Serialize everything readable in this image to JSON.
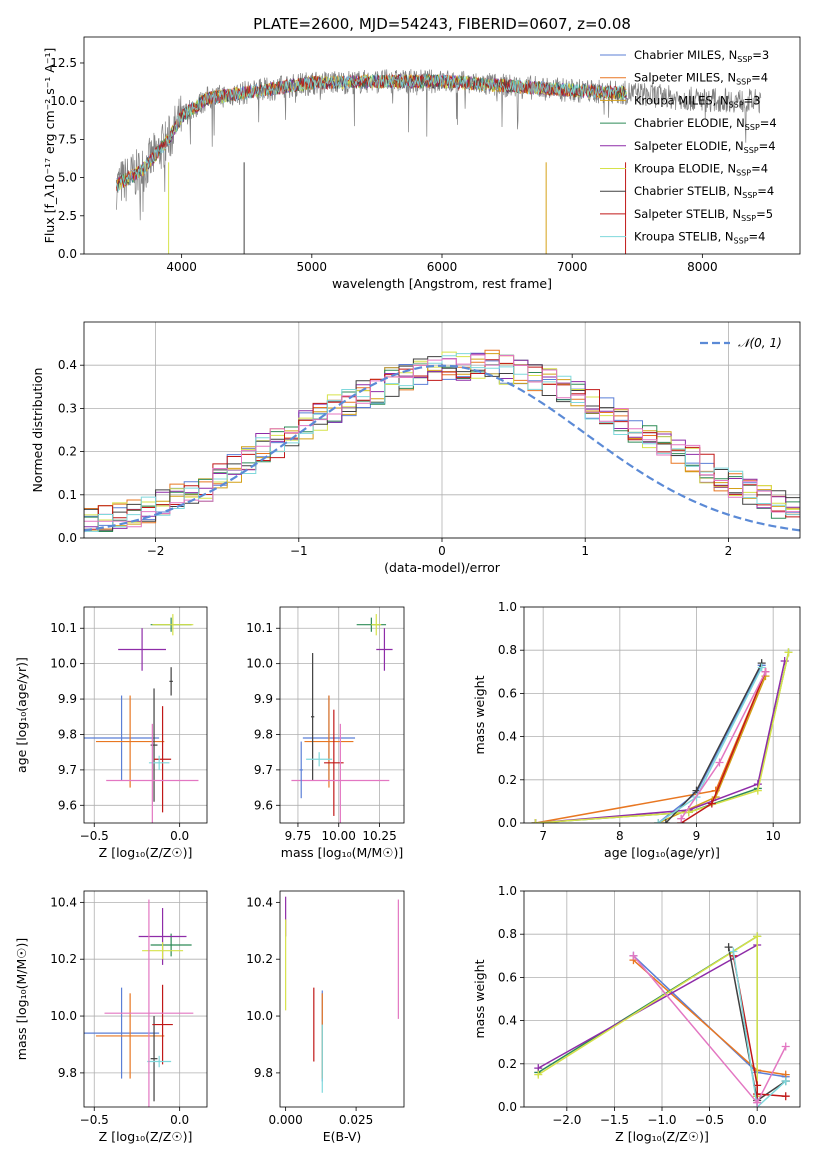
{
  "figure": {
    "title": "PLATE=2600, MJD=54243, FIBERID=0607, z=0.08"
  },
  "colors": {
    "Chabrier MILES": "#5b7fd6",
    "Salpeter MILES": "#e87722",
    "Kroupa MILES": "#d4a017",
    "Chabrier ELODIE": "#2e8b57",
    "Salpeter ELODIE": "#8e2ca8",
    "Kroupa ELODIE": "#d6e24a",
    "Chabrier STELIB": "#404040",
    "Salpeter STELIB": "#c01818",
    "Kroupa STELIB": "#7fd8dc",
    "Chabrier MILES alt": "#e377c2",
    "Normal": "#5b8ad6",
    "data": "#808080"
  },
  "chart_data": [
    {
      "id": "spectrum",
      "type": "line",
      "xlabel": "wavelength [Angstrom, rest frame]",
      "ylabel": "Flux [f_λ10⁻¹⁷ erg cm⁻² s⁻¹ A⁻¹]",
      "xlim": [
        3250,
        8750
      ],
      "ylim": [
        0,
        14.2
      ],
      "xticks": [
        4000,
        5000,
        6000,
        7000,
        8000
      ],
      "yticks": [
        0.0,
        2.5,
        5.0,
        7.5,
        10.0,
        12.5
      ],
      "grid": false,
      "legend_position": "right",
      "data_range": [
        3500,
        8450
      ],
      "model_range": [
        3500,
        7420
      ],
      "continuum": [
        [
          3500,
          4.5
        ],
        [
          3700,
          5.5
        ],
        [
          3900,
          7.5
        ],
        [
          4000,
          9.0
        ],
        [
          4200,
          10.2
        ],
        [
          4600,
          10.7
        ],
        [
          5000,
          11.2
        ],
        [
          5500,
          11.3
        ],
        [
          6000,
          11.3
        ],
        [
          6500,
          11.0
        ],
        [
          7000,
          10.7
        ],
        [
          7500,
          10.5
        ],
        [
          7800,
          10.2
        ],
        [
          8000,
          10.1
        ],
        [
          8450,
          10.0
        ]
      ],
      "legend": [
        {
          "label": "Chabrier MILES, N",
          "sub": "SSP",
          "n": "=3"
        },
        {
          "label": "Salpeter MILES, N",
          "sub": "SSP",
          "n": "=4"
        },
        {
          "label": "Kroupa MILES, N",
          "sub": "SSP",
          "n": "=3"
        },
        {
          "label": "Chabrier ELODIE, N",
          "sub": "SSP",
          "n": "=4"
        },
        {
          "label": "Salpeter ELODIE, N",
          "sub": "SSP",
          "n": "=4"
        },
        {
          "label": "Kroupa ELODIE, N",
          "sub": "SSP",
          "n": "=4"
        },
        {
          "label": "Chabrier STELIB, N",
          "sub": "SSP",
          "n": "=4"
        },
        {
          "label": "Salpeter STELIB, N",
          "sub": "SSP",
          "n": "=5"
        },
        {
          "label": "Kroupa STELIB, N",
          "sub": "SSP",
          "n": "=4"
        }
      ]
    },
    {
      "id": "residuals",
      "type": "bar",
      "xlabel": "(data-model)/error",
      "ylabel": "Normed distribution",
      "xlim": [
        -2.5,
        2.5
      ],
      "ylim": [
        0,
        0.5
      ],
      "xticks": [
        -2,
        -1,
        0,
        1,
        2
      ],
      "yticks": [
        0.0,
        0.1,
        0.2,
        0.3,
        0.4
      ],
      "grid": true,
      "legend_position": "top-right",
      "legend_label": "𝒩(0, 1)",
      "bin_width": 0.1,
      "base_hist": [
        0.02,
        0.02,
        0.03,
        0.03,
        0.04,
        0.04,
        0.05,
        0.05,
        0.06,
        0.07,
        0.08,
        0.09,
        0.11,
        0.12,
        0.14,
        0.16,
        0.18,
        0.21,
        0.22,
        0.24,
        0.26,
        0.28,
        0.3,
        0.31,
        0.33,
        0.34,
        0.36,
        0.37,
        0.38,
        0.39,
        0.4,
        0.4,
        0.4,
        0.4,
        0.39,
        0.38,
        0.37,
        0.36,
        0.34,
        0.33,
        0.31,
        0.29,
        0.27,
        0.25,
        0.24,
        0.22,
        0.2,
        0.18,
        0.16,
        0.14,
        0.12,
        0.11,
        0.09,
        0.08,
        0.07,
        0.06,
        0.05,
        0.04,
        0.04,
        0.03
      ]
    },
    {
      "id": "age_vs_Z",
      "type": "scatter",
      "xlabel": "Z [log₁₀(Z/Z☉)]",
      "ylabel": "age  [log₁₀(age/yr)]",
      "xlim": [
        -0.56,
        0.16
      ],
      "ylim": [
        9.55,
        10.16
      ],
      "xticks": [
        -0.5,
        0.0
      ],
      "yticks": [
        9.6,
        9.7,
        9.8,
        9.9,
        10.0,
        10.1
      ],
      "grid": true,
      "points": [
        {
          "model": "Chabrier MILES",
          "x": -0.34,
          "xerr": 0.22,
          "y": 9.79,
          "yerr": 0.12
        },
        {
          "model": "Salpeter MILES",
          "x": -0.29,
          "xerr": 0.2,
          "y": 9.78,
          "yerr": 0.13
        },
        {
          "model": "Chabrier ELODIE",
          "x": -0.05,
          "xerr": 0.12,
          "y": 10.11,
          "yerr": 0.02
        },
        {
          "model": "Salpeter ELODIE",
          "x": -0.22,
          "xerr": 0.14,
          "y": 10.04,
          "yerr": 0.06
        },
        {
          "model": "Kroupa ELODIE",
          "x": -0.04,
          "xerr": 0.12,
          "y": 10.11,
          "yerr": 0.03
        },
        {
          "model": "Chabrier STELIB",
          "x": -0.15,
          "xerr": 0.02,
          "y": 9.77,
          "yerr": 0.16
        },
        {
          "model": "Salpeter STELIB",
          "x": -0.1,
          "xerr": 0.05,
          "y": 9.73,
          "yerr": 0.15
        },
        {
          "model": "Kroupa STELIB",
          "x": -0.12,
          "xerr": 0.06,
          "y": 9.72,
          "yerr": 0.02
        },
        {
          "model": "Chabrier MILES alt",
          "x": -0.16,
          "xerr": 0.27,
          "y": 9.67,
          "yerr": 0.16
        },
        {
          "model": "Chabrier STELIB",
          "x": -0.05,
          "xerr": 0.01,
          "y": 9.95,
          "yerr": 0.04
        }
      ]
    },
    {
      "id": "age_vs_mass",
      "type": "scatter",
      "xlabel": "mass [log₁₀(M/M☉)]",
      "ylabel": "",
      "xlim": [
        9.64,
        10.4
      ],
      "ylim": [
        9.55,
        10.16
      ],
      "xticks": [
        9.75,
        10.0,
        10.25
      ],
      "yticks": [
        9.6,
        9.7,
        9.8,
        9.9,
        10.0,
        10.1
      ],
      "grid": true,
      "points": [
        {
          "model": "Chabrier MILES",
          "x": 9.94,
          "xerr": 0.16,
          "y": 9.79,
          "yerr": 0.12
        },
        {
          "model": "Salpeter MILES",
          "x": 9.94,
          "xerr": 0.15,
          "y": 9.78,
          "yerr": 0.13
        },
        {
          "model": "Chabrier ELODIE",
          "x": 10.2,
          "xerr": 0.09,
          "y": 10.11,
          "yerr": 0.02
        },
        {
          "model": "Salpeter ELODIE",
          "x": 10.28,
          "xerr": 0.05,
          "y": 10.04,
          "yerr": 0.06
        },
        {
          "model": "Kroupa ELODIE",
          "x": 10.23,
          "xerr": 0.03,
          "y": 10.11,
          "yerr": 0.03
        },
        {
          "model": "Chabrier STELIB",
          "x": 9.84,
          "xerr": 0.01,
          "y": 9.85,
          "yerr": 0.18
        },
        {
          "model": "Salpeter STELIB",
          "x": 9.97,
          "xerr": 0.06,
          "y": 9.72,
          "yerr": 0.15
        },
        {
          "model": "Kroupa STELIB",
          "x": 9.88,
          "xerr": 0.08,
          "y": 9.73,
          "yerr": 0.02
        },
        {
          "model": "Chabrier MILES alt",
          "x": 10.01,
          "xerr": 0.3,
          "y": 9.67,
          "yerr": 0.16
        },
        {
          "model": "Chabrier MILES",
          "x": 9.77,
          "xerr": 0.01,
          "y": 9.7,
          "yerr": 0.08
        }
      ]
    },
    {
      "id": "age_weight",
      "type": "line",
      "xlabel": "age  [log₁₀(age/yr)]",
      "ylabel": "mass weight",
      "xlim": [
        6.75,
        10.35
      ],
      "ylim": [
        0,
        1.0
      ],
      "xticks": [
        7,
        8,
        9,
        10
      ],
      "yticks": [
        0.0,
        0.2,
        0.4,
        0.6,
        0.8,
        1.0
      ],
      "grid": true,
      "series": [
        {
          "model": "Chabrier MILES",
          "x": [
            8.5,
            9.0,
            9.85
          ],
          "y": [
            0.0,
            0.14,
            0.73
          ]
        },
        {
          "model": "Salpeter MILES",
          "x": [
            6.9,
            9.25,
            9.9
          ],
          "y": [
            0.0,
            0.15,
            0.7
          ]
        },
        {
          "model": "Kroupa MILES",
          "x": [
            8.5,
            9.25,
            9.9
          ],
          "y": [
            0.0,
            0.12,
            0.68
          ]
        },
        {
          "model": "Chabrier ELODIE",
          "x": [
            6.9,
            8.9,
            9.8,
            10.2
          ],
          "y": [
            0.0,
            0.05,
            0.16,
            0.79
          ]
        },
        {
          "model": "Salpeter ELODIE",
          "x": [
            6.9,
            8.9,
            9.8,
            10.15
          ],
          "y": [
            0.0,
            0.06,
            0.18,
            0.75
          ]
        },
        {
          "model": "Kroupa ELODIE",
          "x": [
            6.9,
            8.9,
            9.8,
            10.2
          ],
          "y": [
            0.0,
            0.05,
            0.15,
            0.79
          ]
        },
        {
          "model": "Chabrier STELIB",
          "x": [
            8.6,
            9.0,
            9.85
          ],
          "y": [
            0.0,
            0.15,
            0.74
          ]
        },
        {
          "model": "Salpeter STELIB",
          "x": [
            8.8,
            9.2,
            9.9
          ],
          "y": [
            0.0,
            0.09,
            0.7
          ]
        },
        {
          "model": "Kroupa STELIB",
          "x": [
            8.5,
            9.0,
            9.85
          ],
          "y": [
            0.0,
            0.12,
            0.72
          ]
        },
        {
          "model": "Chabrier MILES alt",
          "x": [
            8.8,
            9.3,
            9.9
          ],
          "y": [
            0.02,
            0.28,
            0.7
          ]
        }
      ]
    },
    {
      "id": "mass_vs_Z",
      "type": "scatter",
      "xlabel": "Z [log₁₀(Z/Z☉)]",
      "ylabel": "mass [log₁₀(M/M☉)]",
      "xlim": [
        -0.56,
        0.16
      ],
      "ylim": [
        9.68,
        10.44
      ],
      "xticks": [
        -0.5,
        0.0
      ],
      "yticks": [
        9.8,
        10.0,
        10.2,
        10.4
      ],
      "grid": true,
      "points": [
        {
          "model": "Chabrier MILES",
          "x": -0.34,
          "xerr": 0.22,
          "y": 9.94,
          "yerr": 0.16
        },
        {
          "model": "Salpeter MILES",
          "x": -0.29,
          "xerr": 0.2,
          "y": 9.93,
          "yerr": 0.15
        },
        {
          "model": "Chabrier ELODIE",
          "x": -0.05,
          "xerr": 0.12,
          "y": 10.25,
          "yerr": 0.04
        },
        {
          "model": "Salpeter ELODIE",
          "x": -0.1,
          "xerr": 0.14,
          "y": 10.28,
          "yerr": 0.1
        },
        {
          "model": "Kroupa ELODIE",
          "x": -0.1,
          "xerr": 0.12,
          "y": 10.23,
          "yerr": 0.03
        },
        {
          "model": "Chabrier STELIB",
          "x": -0.15,
          "xerr": 0.02,
          "y": 9.85,
          "yerr": 0.15
        },
        {
          "model": "Salpeter STELIB",
          "x": -0.1,
          "xerr": 0.06,
          "y": 9.97,
          "yerr": 0.14
        },
        {
          "model": "Kroupa STELIB",
          "x": -0.12,
          "xerr": 0.07,
          "y": 9.84,
          "yerr": 0.02
        },
        {
          "model": "Chabrier MILES alt",
          "x": -0.18,
          "xerr": 0.26,
          "y": 10.01,
          "yerr": 0.4
        }
      ]
    },
    {
      "id": "mass_vs_ebv",
      "type": "scatter",
      "xlabel": "E(B-V)",
      "ylabel": "",
      "xlim": [
        -0.002,
        0.042
      ],
      "ylim": [
        9.68,
        10.44
      ],
      "xticks": [
        0.0,
        0.025
      ],
      "yticks": [
        9.8,
        10.0,
        10.2,
        10.4
      ],
      "grid": false,
      "points": [
        {
          "model": "Salpeter ELODIE",
          "x": 0.0,
          "xerr": 0,
          "y": 10.35,
          "yerr": 0.07
        },
        {
          "model": "Kroupa ELODIE",
          "x": 0.0,
          "xerr": 0,
          "y": 10.18,
          "yerr": 0.16
        },
        {
          "model": "Salpeter STELIB",
          "x": 0.01,
          "xerr": 0,
          "y": 9.97,
          "yerr": 0.13
        },
        {
          "model": "Chabrier MILES",
          "x": 0.013,
          "xerr": 0,
          "y": 9.93,
          "yerr": 0.16
        },
        {
          "model": "Salpeter MILES",
          "x": 0.013,
          "xerr": 0,
          "y": 9.93,
          "yerr": 0.15
        },
        {
          "model": "Kroupa STELIB",
          "x": 0.013,
          "xerr": 0,
          "y": 9.85,
          "yerr": 0.12
        },
        {
          "model": "Chabrier MILES alt",
          "x": 0.04,
          "xerr": 0,
          "y": 10.2,
          "yerr": 0.21
        }
      ]
    },
    {
      "id": "Z_weight",
      "type": "line",
      "xlabel": "Z [log₁₀(Z/Z☉)]",
      "ylabel": "mass weight",
      "xlim": [
        -2.45,
        0.45
      ],
      "ylim": [
        0,
        1.0
      ],
      "xticks": [
        -2.0,
        -1.5,
        -1.0,
        -0.5,
        0.0
      ],
      "yticks": [
        0.0,
        0.2,
        0.4,
        0.6,
        0.8,
        1.0
      ],
      "grid": true,
      "series": [
        {
          "model": "Chabrier MILES",
          "x": [
            -1.3,
            0.0,
            0.3
          ],
          "y": [
            0.7,
            0.16,
            0.14
          ]
        },
        {
          "model": "Salpeter MILES",
          "x": [
            -1.3,
            0.0,
            0.3
          ],
          "y": [
            0.68,
            0.17,
            0.15
          ]
        },
        {
          "model": "Chabrier ELODIE",
          "x": [
            -2.3,
            0.0,
            0.0
          ],
          "y": [
            0.16,
            0.79,
            0.05
          ]
        },
        {
          "model": "Salpeter ELODIE",
          "x": [
            -2.3,
            0.0
          ],
          "y": [
            0.18,
            0.75
          ]
        },
        {
          "model": "Kroupa ELODIE",
          "x": [
            -2.3,
            0.0,
            0.0
          ],
          "y": [
            0.15,
            0.79,
            0.05
          ]
        },
        {
          "model": "Chabrier STELIB",
          "x": [
            -0.3,
            0.0,
            0.3
          ],
          "y": [
            0.74,
            0.03,
            0.12
          ]
        },
        {
          "model": "Salpeter STELIB",
          "x": [
            -0.25,
            0.0,
            0.0,
            0.3
          ],
          "y": [
            0.7,
            0.1,
            0.06,
            0.05
          ]
        },
        {
          "model": "Kroupa STELIB",
          "x": [
            -0.25,
            0.0,
            0.3
          ],
          "y": [
            0.72,
            0.0,
            0.12
          ]
        },
        {
          "model": "Chabrier MILES alt",
          "x": [
            -1.3,
            0.0,
            0.3
          ],
          "y": [
            0.7,
            0.02,
            0.28
          ]
        }
      ]
    }
  ]
}
